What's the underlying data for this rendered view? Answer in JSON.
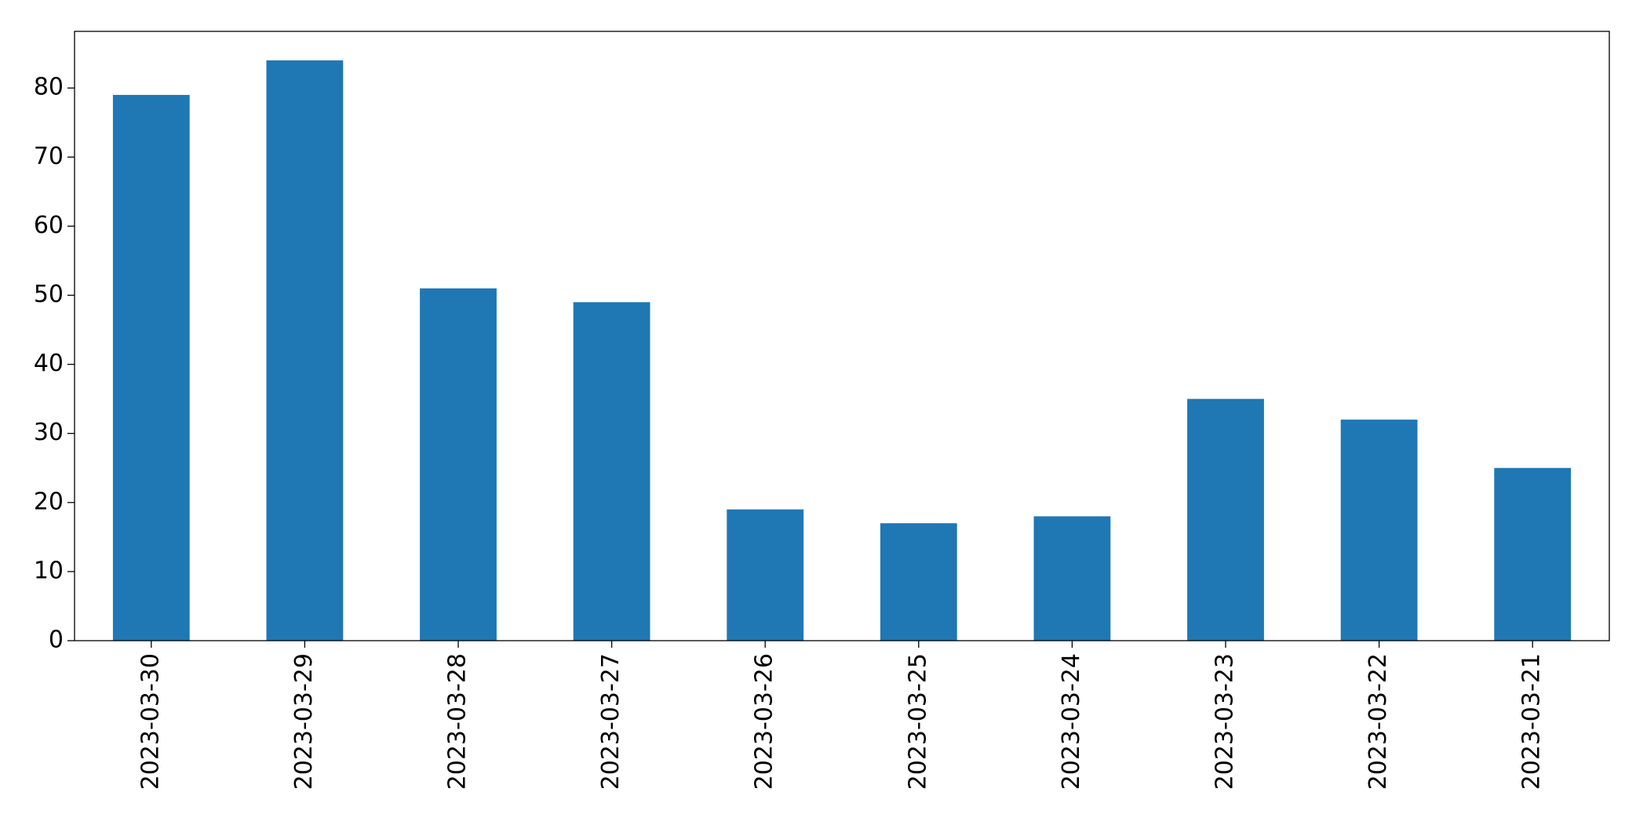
{
  "chart_data": {
    "type": "bar",
    "categories": [
      "2023-03-30",
      "2023-03-29",
      "2023-03-28",
      "2023-03-27",
      "2023-03-26",
      "2023-03-25",
      "2023-03-24",
      "2023-03-23",
      "2023-03-22",
      "2023-03-21"
    ],
    "values": [
      79,
      84,
      51,
      49,
      19,
      17,
      18,
      35,
      32,
      25
    ],
    "color": "#1f77b4",
    "ylim": [
      0,
      88.2
    ],
    "yticks": [
      0,
      10,
      20,
      30,
      40,
      50,
      60,
      70,
      80
    ],
    "grid": false
  }
}
